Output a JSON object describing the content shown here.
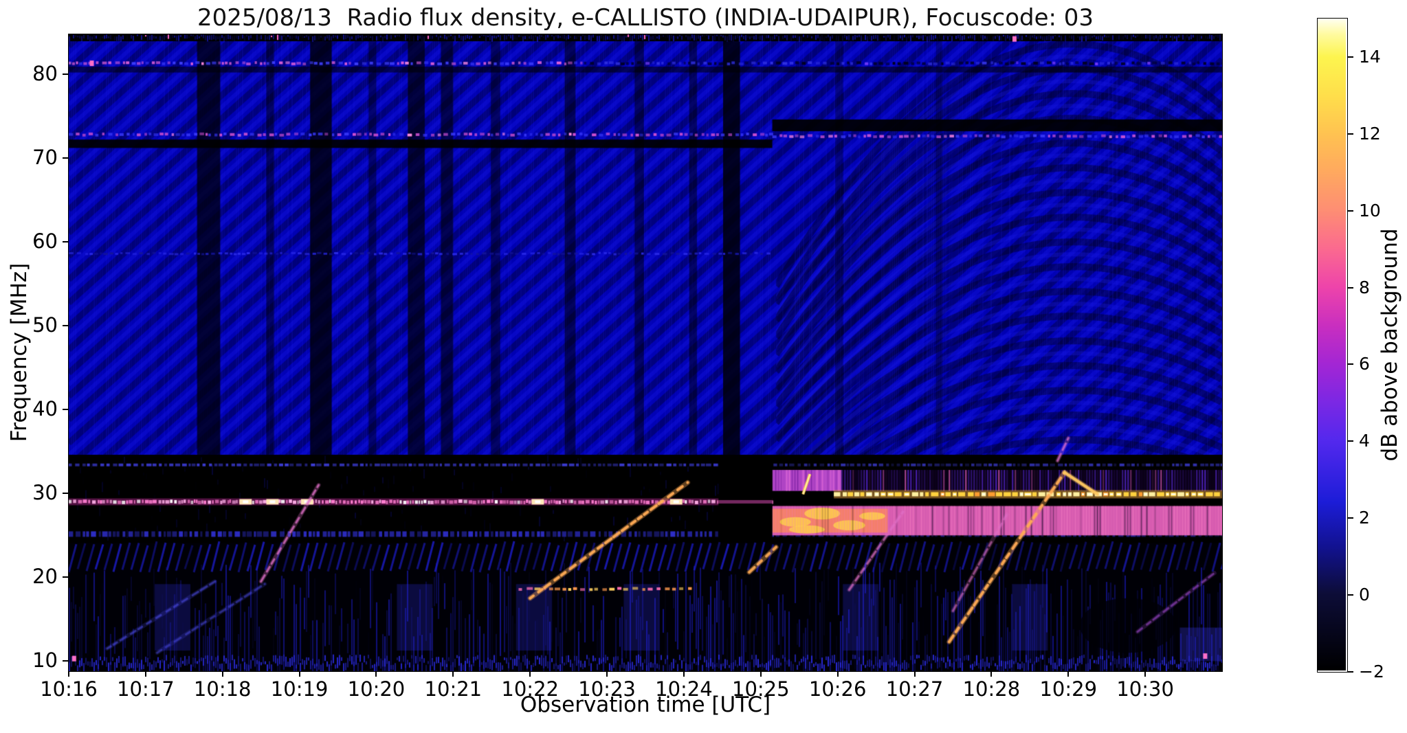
{
  "chart_data": {
    "type": "heatmap",
    "title": "2025/08/13  Radio flux density, e-CALLISTO (INDIA-UDAIPUR), Focuscode: 03",
    "xlabel": "Observation time [UTC]",
    "ylabel": "Frequency [MHz]",
    "colorbar_label": "dB above background",
    "x_ticks": [
      "10:16",
      "10:17",
      "10:18",
      "10:19",
      "10:20",
      "10:21",
      "10:22",
      "10:23",
      "10:24",
      "10:25",
      "10:26",
      "10:27",
      "10:28",
      "10:29",
      "10:30"
    ],
    "x_range_minutes": [
      0,
      15
    ],
    "y_ticks": [
      80,
      70,
      60,
      50,
      40,
      30,
      20,
      10
    ],
    "y_range_mhz": [
      8.8,
      84.75
    ],
    "grid": false,
    "colorbar": {
      "min": -2,
      "max": 15,
      "ticks": [
        14,
        12,
        10,
        8,
        6,
        4,
        2,
        0,
        -2
      ],
      "colormap": "gnuplot2",
      "stops": [
        [
          0,
          "#000000"
        ],
        [
          0.118,
          "#0d0d38"
        ],
        [
          0.188,
          "#12128f"
        ],
        [
          0.259,
          "#1d1dd8"
        ],
        [
          0.353,
          "#5429ee"
        ],
        [
          0.412,
          "#7c28e4"
        ],
        [
          0.471,
          "#a426d4"
        ],
        [
          0.529,
          "#c92fc0"
        ],
        [
          0.588,
          "#ee44ab"
        ],
        [
          0.647,
          "#fb6a90"
        ],
        [
          0.706,
          "#fe8e74"
        ],
        [
          0.765,
          "#ffa95f"
        ],
        [
          0.824,
          "#ffc351"
        ],
        [
          0.882,
          "#ffdf4b"
        ],
        [
          0.941,
          "#fdf54f"
        ],
        [
          0.976,
          "#fffba0"
        ],
        [
          1,
          "#fffff2"
        ]
      ]
    },
    "features": {
      "band": {
        "f_top": 34.6,
        "f_bottom": 24.1
      },
      "transition_t": 9.15,
      "upper": {
        "base_color": "#0101b2",
        "fringe_light": "#1414e1",
        "fringe_dark": "#00003c",
        "fringe_spacing": 17,
        "fringe_slope": 0.9,
        "arc_center_t": 13.05,
        "arc_start_t": 9.2
      },
      "dark_columns": [
        {
          "t": 1.82,
          "w": 0.3,
          "a": 0.75
        },
        {
          "t": 2.62,
          "w": 0.1,
          "a": 0.5
        },
        {
          "t": 3.28,
          "w": 0.28,
          "a": 0.8
        },
        {
          "t": 3.95,
          "w": 0.1,
          "a": 0.45
        },
        {
          "t": 4.52,
          "w": 0.22,
          "a": 0.7
        },
        {
          "t": 4.92,
          "w": 0.16,
          "a": 0.6
        },
        {
          "t": 5.55,
          "w": 0.12,
          "a": 0.5
        },
        {
          "t": 6.52,
          "w": 0.14,
          "a": 0.55
        },
        {
          "t": 7.42,
          "w": 0.12,
          "a": 0.5
        },
        {
          "t": 8.12,
          "w": 0.1,
          "a": 0.5
        },
        {
          "t": 8.62,
          "w": 0.22,
          "a": 0.85,
          "full": true
        },
        {
          "t": 10.02,
          "w": 0.1,
          "a": 0.35
        },
        {
          "t": 11.32,
          "w": 0.08,
          "a": 0.3
        }
      ],
      "dark_bands": [
        {
          "f0": 71.2,
          "f1": 72.2,
          "t0": 0,
          "t1": 9.15,
          "a": 0.92
        },
        {
          "f0": 73.2,
          "f1": 74.6,
          "t0": 9.15,
          "t1": 15,
          "a": 0.92
        },
        {
          "f0": 80.2,
          "f1": 80.9,
          "t0": 0,
          "t1": 15,
          "a": 0.55
        }
      ],
      "rfi_lines": [
        {
          "f": 81.3,
          "t0": 0,
          "t1": 6.7,
          "h": 4,
          "main": "#e060d8",
          "alt": "#4040ff",
          "hot": "#ff8ae0"
        },
        {
          "f": 81.3,
          "t0": 6.7,
          "t1": 15,
          "h": 4,
          "main": "#3030e0",
          "alt": "#000020",
          "hot": "#8040ff"
        },
        {
          "f": 72.8,
          "t0": 0,
          "t1": 9.15,
          "h": 4,
          "main": "#d050d0",
          "alt": "#3838f8",
          "hot": "#ff8ae0"
        },
        {
          "f": 72.6,
          "t0": 9.15,
          "t1": 15,
          "h": 4,
          "main": "#c04fd4",
          "alt": "#3838f8",
          "hot": "#ff8ae0"
        },
        {
          "f": 58.6,
          "t0": 0,
          "t1": 9.15,
          "h": 3,
          "main": "#2a2ae8",
          "alt": "#14149a"
        }
      ],
      "line_29mhz": {
        "f": 29.0,
        "t0": 0,
        "t1": 9.15,
        "h": 5,
        "main": "#ff7fd0",
        "light": "#ffb0e8",
        "core": "#ffffff",
        "glow": "#c828a0",
        "bright_spots_t": [
          2.3,
          2.65,
          3.1,
          6.1,
          7.9
        ]
      },
      "line_30mhz": {
        "f": 29.9,
        "t0": 9.95,
        "t1": 15,
        "h": 6,
        "main": "#ffd23f",
        "light": "#fff0a0",
        "deep": "#ff9c30",
        "glow": "#ffb44a"
      },
      "black_patch": {
        "t0": 8.45,
        "t1": 9.15
      },
      "upper_band": {
        "f0": 30.3,
        "f1": 32.8,
        "t0": 9.15,
        "t1": 15,
        "bright_until": 10.05,
        "bright": "#b448c8",
        "stripe_light": "#e76fd8",
        "stripe_dark": "#7a20a0",
        "dim_bg": "#0a0016",
        "dim_stripe": "#5a28dc",
        "dim_pink": "#f064c8"
      },
      "lower_band": {
        "f0": 25.0,
        "f1": 28.5,
        "t0": 9.15,
        "t1": 15,
        "bright_until": 10.65,
        "base": "#d65bb0",
        "hot": "#ff8c50",
        "blob": "#ffd24a",
        "dim": "#f078be"
      },
      "gap_band": {
        "f0": 28.55,
        "f1": 29.5,
        "t0": 9.15,
        "t1": 15
      },
      "yellow_flash": {
        "t": 9.55,
        "f0": 29.9,
        "f1": 32.3,
        "color": "#ffd24a"
      },
      "band_rows": [
        {
          "f": 33.4,
          "h": 4,
          "color": "#4848ff",
          "strong_until": 9.15
        },
        {
          "f": 25.15,
          "h": 8,
          "color": "#3535e8",
          "strong_until": 9.15
        }
      ],
      "sweeps": [
        {
          "pts": [
            [
              2.5,
              19.5
            ],
            [
              3.25,
              31.0
            ]
          ],
          "color": "#e070c8",
          "w": 3,
          "a": 0.75,
          "dotted": true
        },
        {
          "pts": [
            [
              0.5,
              11.5
            ],
            [
              1.9,
              19.5
            ]
          ],
          "color": "#5050f0",
          "w": 3,
          "a": 0.5,
          "dotted": true
        },
        {
          "pts": [
            [
              1.15,
              11.0
            ],
            [
              2.55,
              19.2
            ]
          ],
          "color": "#5050f0",
          "w": 3,
          "a": 0.45,
          "dotted": true
        },
        {
          "pts": [
            [
              6.0,
              17.5
            ],
            [
              8.05,
              31.3
            ]
          ],
          "color": "#ffab55",
          "w": 4,
          "a": 0.95,
          "dotted": true
        },
        {
          "pts": [
            [
              8.85,
              20.6
            ],
            [
              9.2,
              23.6
            ]
          ],
          "color": "#ffab55",
          "w": 4,
          "a": 0.9,
          "dotted": true
        },
        {
          "pts": [
            [
              10.15,
              18.5
            ],
            [
              10.85,
              27.8
            ]
          ],
          "color": "#e070c8",
          "w": 3,
          "a": 0.65,
          "dotted": true
        },
        {
          "pts": [
            [
              11.5,
              16.0
            ],
            [
              12.2,
              27.5
            ]
          ],
          "color": "#e070c8",
          "w": 3,
          "a": 0.55,
          "dotted": true
        },
        {
          "pts": [
            [
              11.45,
              12.3
            ],
            [
              12.95,
              32.5
            ]
          ],
          "color": "#ffab55",
          "w": 4,
          "a": 0.95,
          "dotted": true
        },
        {
          "pts": [
            [
              12.95,
              32.5
            ],
            [
              13.38,
              29.9
            ]
          ],
          "color": "#ffc860",
          "w": 4,
          "a": 0.95,
          "dotted": false
        },
        {
          "pts": [
            [
              12.86,
              33.9
            ],
            [
              13.0,
              36.6
            ]
          ],
          "color": "#e070c8",
          "w": 3,
          "a": 0.7,
          "dotted": true
        },
        {
          "pts": [
            [
              13.9,
              13.5
            ],
            [
              14.9,
              20.5
            ]
          ],
          "color": "#b050e0",
          "w": 3,
          "a": 0.5,
          "dotted": true
        }
      ],
      "line_18mhz": {
        "f": 18.6,
        "t0": 5.85,
        "t1": 8.1,
        "colors": [
          "#ff9a4d",
          "#ffd060",
          "#ff6fb0"
        ]
      },
      "lower": {
        "hatch_f0": 21.0,
        "hatch_f1": 24.3,
        "stripe": "#1e1ed7",
        "clusters_t": [
          1.35,
          4.5,
          6.05,
          7.45,
          10.3,
          12.5
        ]
      },
      "dark_blob": {
        "t0": 13.15,
        "t1": 14.4,
        "f0": 11.0,
        "f1": 17.5
      },
      "bright_patch": {
        "t0": 14.45,
        "t1": 15,
        "f0": 10.0,
        "f1": 14.0
      },
      "bottom_row": {
        "f0": 8.8,
        "f1": 10.8
      },
      "pink_dots": [
        [
          0.07,
          10.3
        ],
        [
          14.78,
          10.6
        ],
        [
          0.3,
          81.3
        ],
        [
          12.3,
          84.2
        ]
      ]
    }
  }
}
